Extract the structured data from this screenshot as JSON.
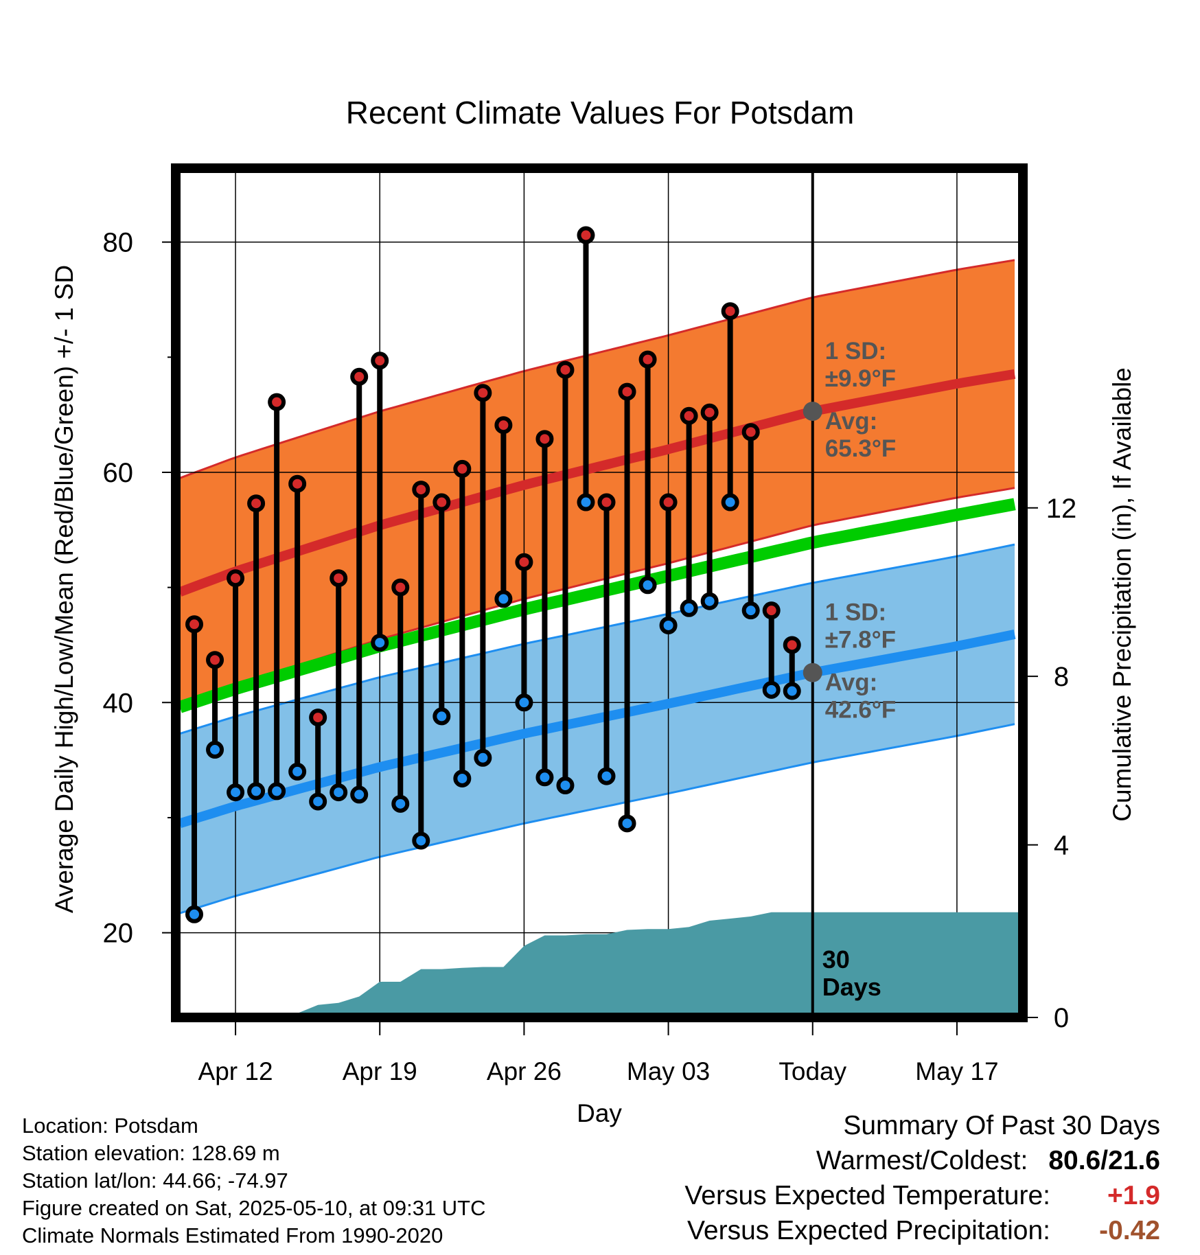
{
  "chart_data": {
    "type": "line",
    "title": "Recent Climate Values For Potsdam",
    "xlabel": "Day",
    "ylabel": "Average Daily High/Low/Mean (Red/Blue/Green) +/- 1 SD",
    "y2label": "Cumulative Precipitation (in), If Available",
    "x_ticks": [
      "Apr 12",
      "Apr 19",
      "Apr 26",
      "May 03",
      "Today",
      "May 17"
    ],
    "x_tick_days": [
      0,
      7,
      14,
      21,
      28,
      35
    ],
    "xlim_days": [
      -2.7,
      38.0
    ],
    "today_day": 28,
    "ylim": [
      13,
      86
    ],
    "y_ticks": [
      20,
      40,
      60,
      80
    ],
    "y_minor_ticks": [
      30,
      50,
      70
    ],
    "y2lim": [
      0,
      19.95
    ],
    "y2_ticks": [
      0,
      4,
      8,
      12
    ],
    "grid": true,
    "normals": {
      "day": [
        -2.7,
        0,
        7,
        14,
        21,
        28,
        35,
        38
      ],
      "high_mean": [
        49.6,
        51.4,
        55.4,
        58.9,
        62.0,
        65.3,
        67.7,
        68.6
      ],
      "high_sd": 9.9,
      "low_mean": [
        29.5,
        31.0,
        34.4,
        37.3,
        39.9,
        42.6,
        44.9,
        46.0
      ],
      "low_sd": 7.8,
      "mean": [
        39.6,
        41.2,
        44.9,
        48.1,
        51.0,
        53.9,
        56.3,
        57.3
      ]
    },
    "observed": {
      "day": [
        -2,
        -1,
        0,
        1,
        2,
        3,
        4,
        5,
        6,
        7,
        8,
        9,
        10,
        11,
        12,
        13,
        14,
        15,
        16,
        17,
        18,
        19,
        20,
        21,
        22,
        23,
        24,
        25,
        26,
        27
      ],
      "high": [
        46.8,
        43.7,
        50.8,
        57.3,
        66.1,
        59.0,
        38.7,
        50.8,
        68.3,
        69.7,
        50.0,
        58.5,
        57.4,
        60.3,
        66.9,
        64.1,
        52.2,
        62.9,
        68.9,
        80.6,
        57.4,
        67.0,
        69.8,
        57.4,
        64.9,
        65.2,
        74.0,
        63.5,
        48.0,
        45.0
      ],
      "low": [
        21.6,
        35.9,
        32.2,
        32.3,
        32.3,
        34.0,
        31.4,
        32.2,
        32.0,
        45.2,
        31.2,
        28.0,
        38.8,
        33.4,
        35.2,
        49.0,
        40.0,
        33.5,
        32.8,
        57.4,
        33.6,
        29.5,
        50.2,
        46.7,
        48.2,
        48.8,
        57.4,
        48.0,
        41.1,
        41.0
      ]
    },
    "precip": {
      "day": [
        -2.7,
        0,
        1,
        2,
        3,
        4,
        5,
        6,
        7,
        8,
        9,
        10,
        11,
        12,
        13,
        14,
        15,
        16,
        17,
        18,
        19,
        20,
        21,
        22,
        23,
        24,
        25,
        26,
        27,
        38.0
      ],
      "cumulative": [
        0,
        0,
        0,
        0,
        0,
        0.2,
        0.25,
        0.4,
        0.75,
        0.75,
        1.05,
        1.05,
        1.08,
        1.1,
        1.1,
        1.6,
        1.85,
        1.85,
        1.88,
        1.88,
        1.98,
        2.0,
        2.0,
        2.05,
        2.2,
        2.25,
        2.3,
        2.4,
        2.4,
        2.4
      ]
    },
    "annotations": {
      "high_sd_label": "1 SD:",
      "high_sd_value": "±9.9°F",
      "high_avg_label": "Avg:",
      "high_avg_value": "65.3°F",
      "low_sd_label": "1 SD:",
      "low_sd_value": "±7.8°F",
      "low_avg_label": "Avg:",
      "low_avg_value": "42.6°F",
      "days_number": "30",
      "days_word": "Days"
    },
    "colors": {
      "high_band": "#f47a30",
      "high_line": "#d42a2a",
      "low_band": "#82c0e8",
      "low_line": "#1e8ef0",
      "mean_line": "#00cc00",
      "precip": "#4a9aa4",
      "high_marker": "#d42a2a",
      "low_marker": "#1e8ef0",
      "today_marker": "#555555",
      "annotation": "#555555"
    }
  },
  "footer": {
    "location": "Location: Potsdam",
    "elevation": "Station elevation: 128.69 m",
    "latlon": "Station lat/lon: 44.66; -74.97",
    "created": "Figure created on Sat, 2025-05-10, at 09:31 UTC",
    "normals": "Climate Normals Estimated From 1990-2020"
  },
  "summary": {
    "title": "Summary Of Past 30 Days",
    "warm_cold_label": "Warmest/Coldest:",
    "warm_cold_value": "80.6/21.6",
    "temp_label": "Versus Expected Temperature:",
    "temp_value": "+1.9",
    "temp_color": "#d42a2a",
    "precip_label": "Versus Expected Precipitation:",
    "precip_value": "-0.42",
    "precip_color": "#a0522d"
  }
}
